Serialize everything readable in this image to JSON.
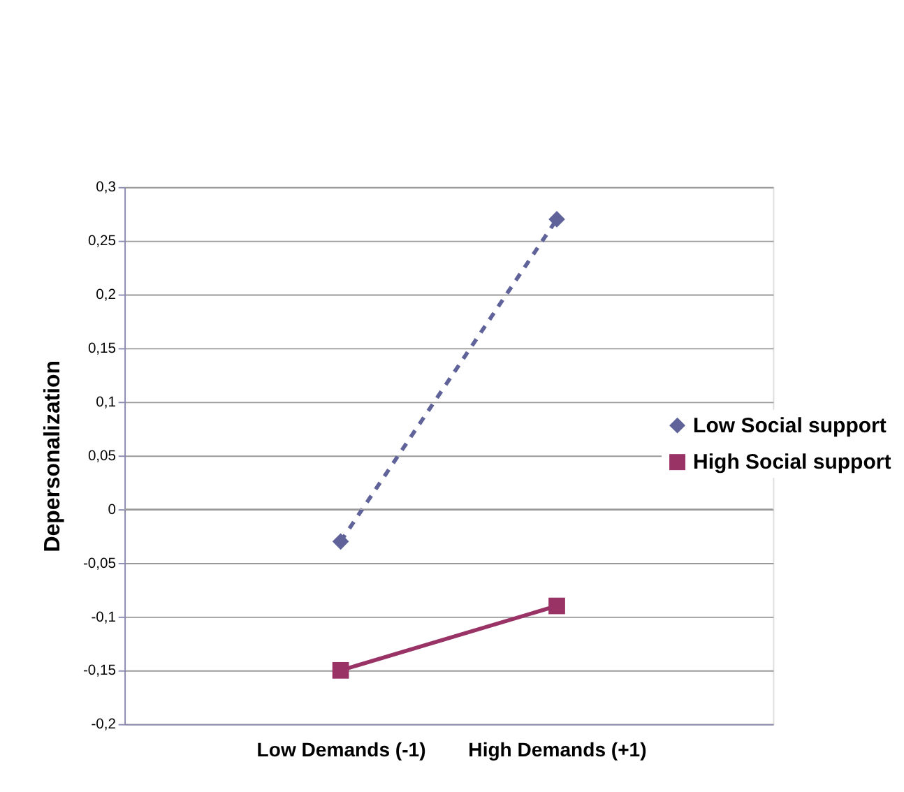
{
  "chart_data": {
    "type": "line",
    "ylabel": "Depersonalization",
    "categories": [
      "Low Demands (-1)",
      "High Demands (+1)"
    ],
    "series": [
      {
        "name": "Low Social support",
        "color": "#5f6399",
        "values": [
          -0.03,
          0.27
        ],
        "marker": "diamond",
        "line_style": "dashed"
      },
      {
        "name": "High Social support",
        "color": "#993366",
        "values": [
          -0.15,
          -0.09
        ],
        "marker": "square",
        "line_style": "solid"
      }
    ],
    "ylim": [
      -0.2,
      0.3
    ],
    "yticks": [
      {
        "value": -0.2,
        "label": "-0,2"
      },
      {
        "value": -0.15,
        "label": "-0,15"
      },
      {
        "value": -0.1,
        "label": "-0,1"
      },
      {
        "value": -0.05,
        "label": "-0,05"
      },
      {
        "value": 0,
        "label": "0"
      },
      {
        "value": 0.05,
        "label": "0,05"
      },
      {
        "value": 0.1,
        "label": "0,1"
      },
      {
        "value": 0.15,
        "label": "0,15"
      },
      {
        "value": 0.2,
        "label": "0,2"
      },
      {
        "value": 0.25,
        "label": "0,25"
      },
      {
        "value": 0.3,
        "label": "0,3"
      }
    ],
    "grid": "y",
    "legend": "right"
  }
}
